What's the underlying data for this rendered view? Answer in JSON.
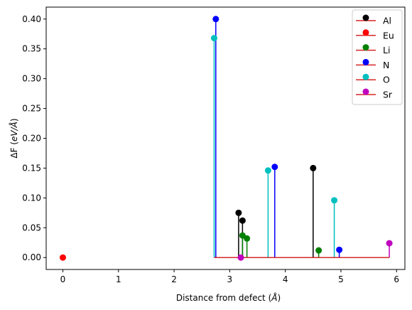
{
  "chart_data": {
    "type": "stem",
    "xlabel_prefix": "Distance from defect (",
    "xlabel_unit": "Å",
    "xlabel_suffix": ")",
    "ylabel_prefix": "ΔF (",
    "ylabel_unit": "eV/Å",
    "ylabel_suffix": ")",
    "xlim": [
      -0.3,
      6.15
    ],
    "ylim": [
      -0.02,
      0.42
    ],
    "xticks": [
      0,
      1,
      2,
      3,
      4,
      5,
      6
    ],
    "yticks": [
      0.0,
      0.05,
      0.1,
      0.15,
      0.2,
      0.25,
      0.3,
      0.35,
      0.4
    ],
    "ytick_labels": [
      "0.00",
      "0.05",
      "0.10",
      "0.15",
      "0.20",
      "0.25",
      "0.30",
      "0.35",
      "0.40"
    ],
    "baseline": {
      "from": 2.72,
      "to": 5.87,
      "color": "#d62728"
    },
    "grid": false,
    "legend_position": "top-right",
    "series": [
      {
        "name": "Al",
        "color": "#000000",
        "points": [
          [
            3.16,
            0.075
          ],
          [
            3.23,
            0.062
          ],
          [
            4.5,
            0.15
          ]
        ]
      },
      {
        "name": "Eu",
        "color": "#ff0000",
        "points": [
          [
            0.0,
            0.0
          ]
        ]
      },
      {
        "name": "Li",
        "color": "#008000",
        "points": [
          [
            3.23,
            0.037
          ],
          [
            3.31,
            0.032
          ],
          [
            4.6,
            0.012
          ]
        ]
      },
      {
        "name": "N",
        "color": "#0000ff",
        "points": [
          [
            2.75,
            0.4
          ],
          [
            3.81,
            0.152
          ],
          [
            4.97,
            0.013
          ]
        ]
      },
      {
        "name": "O",
        "color": "#00bfbf",
        "points": [
          [
            2.72,
            0.368
          ],
          [
            3.69,
            0.146
          ],
          [
            4.88,
            0.096
          ]
        ]
      },
      {
        "name": "Sr",
        "color": "#bf00bf",
        "points": [
          [
            3.2,
            0.0
          ],
          [
            5.87,
            0.024
          ]
        ]
      }
    ]
  }
}
